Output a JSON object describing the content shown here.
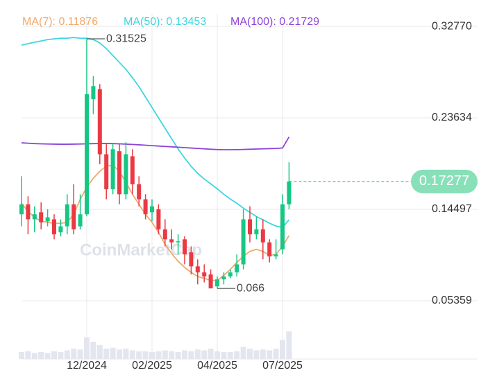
{
  "chart_data": {
    "type": "candlestick",
    "categories": [
      null,
      null,
      null,
      null,
      null,
      null,
      null,
      null,
      null,
      null,
      "12/2024",
      null,
      null,
      null,
      null,
      null,
      null,
      null,
      null,
      null,
      "02/2025",
      null,
      null,
      null,
      null,
      null,
      null,
      null,
      null,
      null,
      "04/2025",
      null,
      null,
      null,
      null,
      null,
      null,
      null,
      null,
      null,
      "07/2025",
      null
    ],
    "open": [
      0.14,
      0.15,
      0.135,
      0.142,
      0.133,
      0.135,
      0.122,
      0.128,
      0.15,
      0.128,
      0.14,
      0.255,
      0.265,
      0.2,
      0.165,
      0.203,
      0.16,
      0.198,
      0.17,
      0.155,
      0.142,
      0.145,
      0.125,
      0.115,
      0.112,
      0.115,
      0.102,
      0.088,
      0.082,
      0.08,
      0.068,
      0.075,
      0.078,
      0.082,
      0.09,
      0.135,
      0.12,
      0.125,
      0.112,
      0.098,
      0.105,
      0.15
    ],
    "high": [
      0.178,
      0.158,
      0.148,
      0.152,
      0.145,
      0.14,
      0.135,
      0.16,
      0.17,
      0.16,
      0.31525,
      0.278,
      0.27,
      0.21,
      0.21,
      0.21,
      0.212,
      0.205,
      0.178,
      0.16,
      0.155,
      0.15,
      0.135,
      0.125,
      0.12,
      0.118,
      0.108,
      0.095,
      0.09,
      0.085,
      0.078,
      0.082,
      0.085,
      0.1,
      0.145,
      0.148,
      0.138,
      0.135,
      0.115,
      0.115,
      0.16,
      0.192
    ],
    "low": [
      0.128,
      0.12,
      0.122,
      0.125,
      0.128,
      0.115,
      0.118,
      0.12,
      0.12,
      0.125,
      0.138,
      0.24,
      0.19,
      0.155,
      0.16,
      0.15,
      0.155,
      0.16,
      0.148,
      0.135,
      0.133,
      0.12,
      0.108,
      0.105,
      0.1,
      0.09,
      0.08,
      0.07,
      0.072,
      0.06605,
      0.066,
      0.07,
      0.076,
      0.078,
      0.085,
      0.112,
      0.115,
      0.095,
      0.092,
      0.095,
      0.1,
      0.145
    ],
    "close": [
      0.15,
      0.135,
      0.14,
      0.132,
      0.137,
      0.12,
      0.128,
      0.15,
      0.125,
      0.14,
      0.26,
      0.268,
      0.2,
      0.165,
      0.205,
      0.16,
      0.2,
      0.17,
      0.155,
      0.14,
      0.148,
      0.125,
      0.115,
      0.112,
      0.113,
      0.1,
      0.088,
      0.082,
      0.078,
      0.066,
      0.075,
      0.078,
      0.082,
      0.09,
      0.135,
      0.12,
      0.125,
      0.112,
      0.098,
      0.1,
      0.15,
      0.17277
    ],
    "up_color": "#16c784",
    "down_color": "#ea3943",
    "volume": [
      8,
      9,
      7,
      8,
      7,
      9,
      8,
      10,
      12,
      11,
      25,
      20,
      16,
      12,
      13,
      11,
      12,
      10,
      9,
      9,
      8,
      9,
      10,
      9,
      8,
      10,
      9,
      11,
      10,
      12,
      9,
      8,
      8,
      9,
      14,
      12,
      10,
      11,
      10,
      12,
      22,
      32
    ],
    "volume_color": "#e3e6ee",
    "series": [
      {
        "name": "MA(7): 0.11876",
        "color": "#f0a96b",
        "values": [
          0.151,
          0.143,
          0.137,
          0.133,
          0.132,
          0.131,
          0.131,
          0.132,
          0.14,
          0.155,
          0.167,
          0.176,
          0.183,
          0.188,
          0.189,
          0.183,
          0.172,
          0.16,
          0.15,
          0.14,
          0.132,
          0.122,
          0.11,
          0.101,
          0.093,
          0.087,
          0.082,
          0.078,
          0.076,
          0.074,
          0.074,
          0.079,
          0.085,
          0.092,
          0.098,
          0.103,
          0.105,
          0.103,
          0.099,
          0.1,
          0.108,
          0.11876
        ]
      },
      {
        "name": "MA(50): 0.13453",
        "color": "#3dd6e0",
        "values": [
          0.309,
          0.3104,
          0.3118,
          0.3131,
          0.3145,
          0.3152,
          0.3159,
          0.3159,
          0.3166,
          0.3159,
          0.3159,
          0.3145,
          0.3111,
          0.3055,
          0.2986,
          0.2917,
          0.2848,
          0.2765,
          0.2675,
          0.2571,
          0.2467,
          0.2363,
          0.2259,
          0.2156,
          0.2052,
          0.1962,
          0.1879,
          0.181,
          0.1752,
          0.1704,
          0.1655,
          0.16,
          0.1552,
          0.151,
          0.1462,
          0.142,
          0.1378,
          0.1346,
          0.1311,
          0.1283,
          0.127,
          0.13453
        ]
      },
      {
        "name": "MA(100): 0.21729",
        "color": "#8c44d8",
        "values": [
          0.2114,
          0.211,
          0.2106,
          0.2104,
          0.2102,
          0.2101,
          0.21,
          0.21,
          0.2101,
          0.2102,
          0.2104,
          0.2106,
          0.2107,
          0.2107,
          0.2106,
          0.2104,
          0.2101,
          0.2098,
          0.2094,
          0.209,
          0.2086,
          0.2082,
          0.2078,
          0.2074,
          0.207,
          0.2066,
          0.2062,
          0.2058,
          0.2054,
          0.205,
          0.2047,
          0.2045,
          0.2045,
          0.2046,
          0.2048,
          0.205,
          0.2052,
          0.2054,
          0.2056,
          0.2058,
          0.2062,
          0.21729
        ]
      }
    ],
    "ylim": [
      0.0356,
      0.3402
    ],
    "yticks": [
      {
        "value": 0.3277,
        "label": "0.32770"
      },
      0.23634,
      0.14497,
      0.05359
    ],
    "grid": true,
    "watermark": "CoinMarketCap"
  }
}
